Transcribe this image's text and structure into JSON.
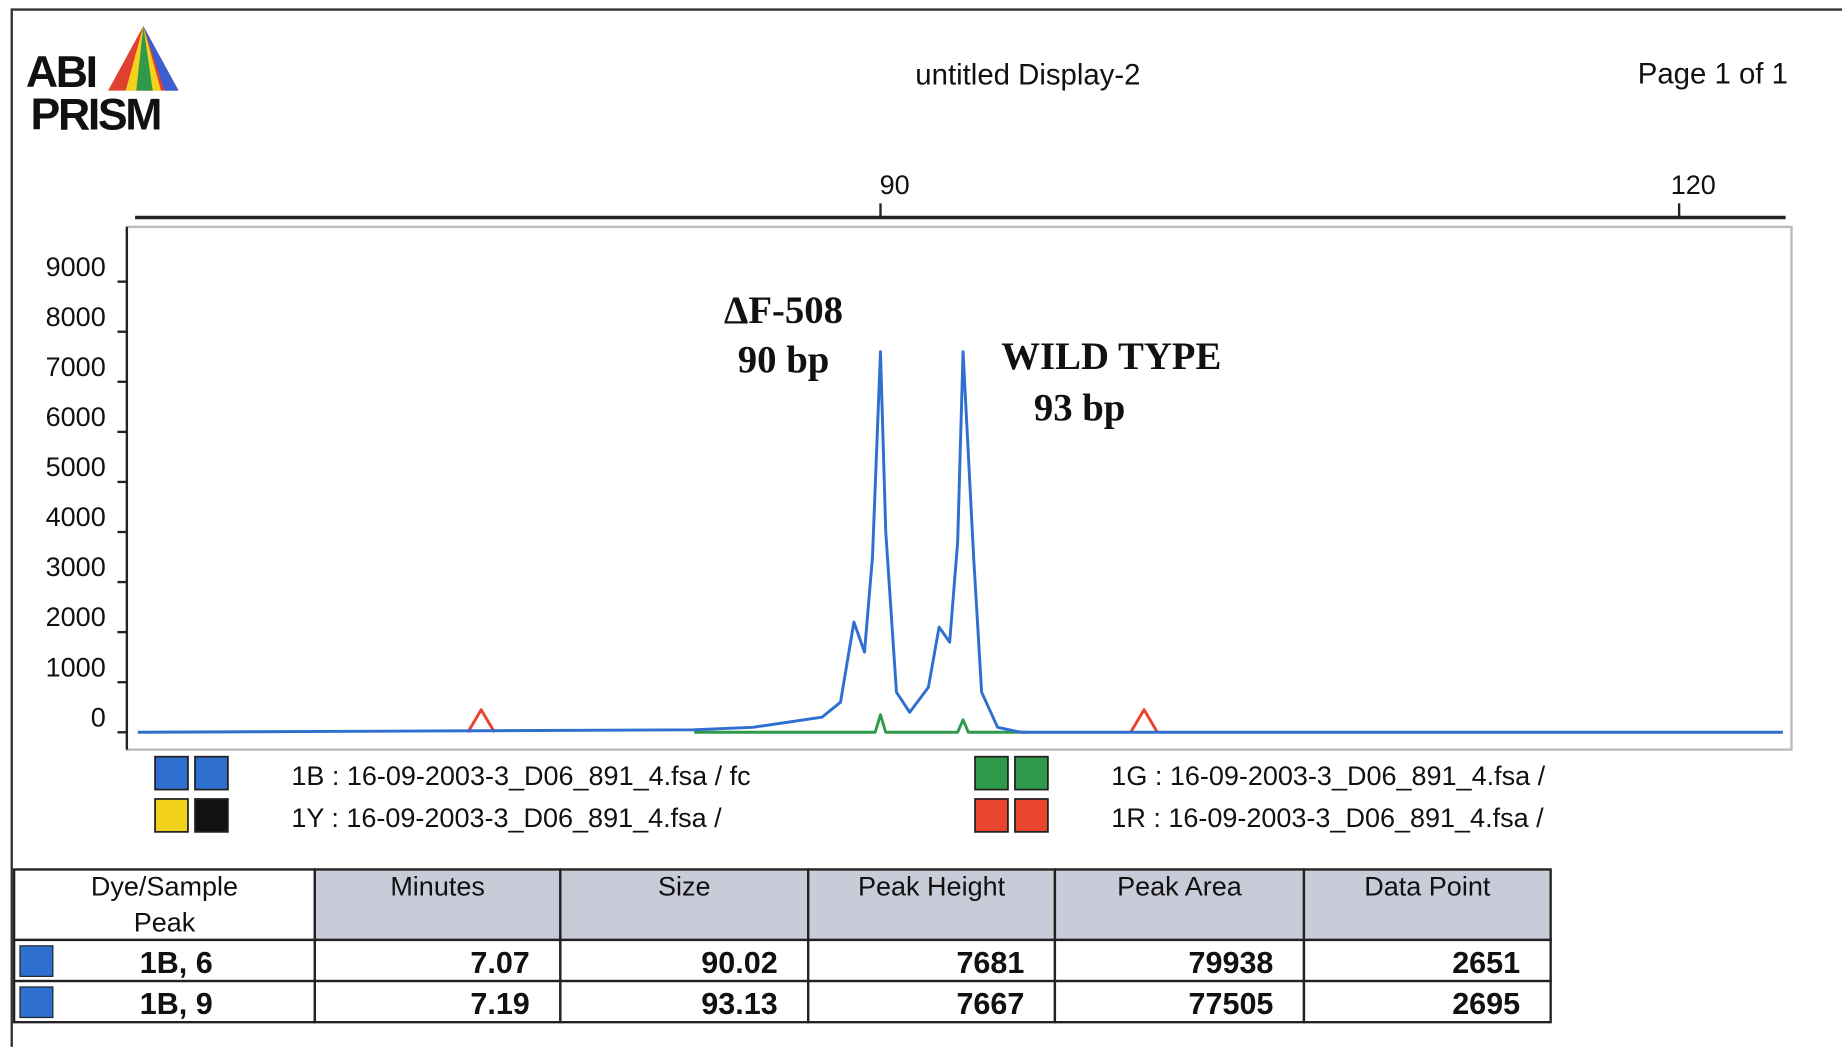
{
  "header": {
    "logo_line1": "ABI",
    "logo_line2": "PRISM",
    "title": "untitled Display-2",
    "page": "Page 1 of 1"
  },
  "chart_data": {
    "type": "line",
    "xlim": [
      62,
      124
    ],
    "xticks": [
      90,
      120
    ],
    "ylim": [
      -300,
      10000
    ],
    "yticks": [
      0,
      1000,
      2000,
      3000,
      4000,
      5000,
      6000,
      7000,
      8000,
      9000
    ],
    "series": [
      {
        "name": "1G",
        "color": "#2e9a4a",
        "x": [
          83,
          89.8,
          90.0,
          90.2,
          92.9,
          93.1,
          93.3,
          95.5
        ],
        "values": [
          0,
          0,
          350,
          0,
          0,
          250,
          0,
          0
        ]
      },
      {
        "name": "1R",
        "color": "#e8452c",
        "x": [
          74.5,
          75.0,
          75.5,
          87,
          99.4,
          99.9,
          100.4
        ],
        "values": [
          0,
          450,
          0,
          null,
          0,
          450,
          0
        ]
      },
      {
        "name": "1B",
        "color": "#2f6fd0",
        "x": [
          62.1,
          82.95,
          85.2,
          87.8,
          88.5,
          89.0,
          89.4,
          89.7,
          90.0,
          90.2,
          90.6,
          91.1,
          91.8,
          92.2,
          92.6,
          92.9,
          93.1,
          93.5,
          93.8,
          94.4,
          95.1,
          95.3,
          123.9
        ],
        "values": [
          0,
          50,
          100,
          300,
          600,
          2200,
          1600,
          3500,
          7600,
          4000,
          800,
          400,
          900,
          2100,
          1800,
          3800,
          7600,
          3500,
          800,
          100,
          20,
          0,
          0
        ]
      }
    ],
    "annotations": [
      "ΔF-508",
      "90 bp",
      "WILD TYPE",
      "93 bp"
    ]
  },
  "legend": [
    {
      "label": "1B : 16-09-2003-3_D06_891_4.fsa / fc",
      "colors": [
        "#2f6fd0",
        "#2f6fd0"
      ]
    },
    {
      "label": "1G : 16-09-2003-3_D06_891_4.fsa /",
      "colors": [
        "#2e9a4a",
        "#2e9a4a"
      ]
    },
    {
      "label": "1Y : 16-09-2003-3_D06_891_4.fsa /",
      "colors": [
        "#f3d21c",
        "#111111"
      ]
    },
    {
      "label": "1R : 16-09-2003-3_D06_891_4.fsa /",
      "colors": [
        "#e8452c",
        "#e8452c"
      ]
    }
  ],
  "table": {
    "columns": [
      "Dye/Sample",
      "Minutes",
      "Size",
      "Peak Height",
      "Peak Area",
      "Data Point"
    ],
    "column_sub": "Peak",
    "row_color": "#2f6fd0",
    "rows": [
      [
        "1B, 6",
        "7.07",
        "90.02",
        "7681",
        "79938",
        "2651"
      ],
      [
        "1B, 9",
        "7.19",
        "93.13",
        "7667",
        "77505",
        "2695"
      ]
    ]
  }
}
